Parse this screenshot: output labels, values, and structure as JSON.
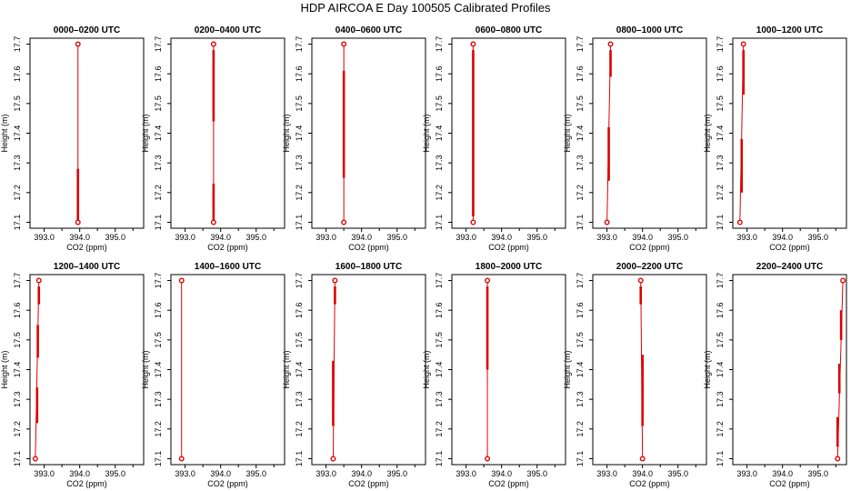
{
  "title": "HDP AIRCOA E  Day 100505  Calibrated Profiles",
  "xlabel": "CO2 (ppm)",
  "ylabel": "Height (m)",
  "x_ticks": [
    "393.0",
    "394.0",
    "395.0"
  ],
  "y_ticks": [
    "17.1",
    "17.2",
    "17.3",
    "17.4",
    "17.5",
    "17.6",
    "17.7"
  ],
  "colors": {
    "profile": "#dd0000",
    "frame": "#000000"
  },
  "chart_data": [
    {
      "type": "line",
      "title": "0000–0200 UTC",
      "xlim": [
        392.6,
        395.8
      ],
      "ylim": [
        17.08,
        17.72
      ],
      "points": [
        [
          393.95,
          17.1
        ],
        [
          393.95,
          17.7
        ]
      ],
      "segments": [
        [
          393.95,
          17.1,
          393.95,
          17.28
        ]
      ]
    },
    {
      "type": "line",
      "title": "0200–0400 UTC",
      "xlim": [
        392.6,
        395.8
      ],
      "ylim": [
        17.08,
        17.72
      ],
      "points": [
        [
          393.8,
          17.1
        ],
        [
          393.8,
          17.7
        ]
      ],
      "segments": [
        [
          393.8,
          17.1,
          393.8,
          17.23
        ],
        [
          393.8,
          17.44,
          393.8,
          17.68
        ]
      ]
    },
    {
      "type": "line",
      "title": "0400–0600 UTC",
      "xlim": [
        392.6,
        395.8
      ],
      "ylim": [
        17.08,
        17.72
      ],
      "points": [
        [
          393.5,
          17.1
        ],
        [
          393.5,
          17.7
        ]
      ],
      "segments": [
        [
          393.5,
          17.25,
          393.5,
          17.61
        ]
      ]
    },
    {
      "type": "line",
      "title": "0600–0800 UTC",
      "xlim": [
        392.6,
        395.8
      ],
      "ylim": [
        17.08,
        17.72
      ],
      "points": [
        [
          393.2,
          17.1
        ],
        [
          393.2,
          17.7
        ]
      ],
      "segments": [
        [
          393.2,
          17.12,
          393.2,
          17.68
        ]
      ]
    },
    {
      "type": "line",
      "title": "0800–1000 UTC",
      "xlim": [
        392.6,
        395.8
      ],
      "ylim": [
        17.08,
        17.72
      ],
      "points": [
        [
          393.0,
          17.1
        ],
        [
          393.1,
          17.7
        ]
      ],
      "segments": [
        [
          393.05,
          17.24,
          393.05,
          17.42
        ],
        [
          393.1,
          17.59,
          393.1,
          17.68
        ]
      ]
    },
    {
      "type": "line",
      "title": "1000–1200 UTC",
      "xlim": [
        392.6,
        395.8
      ],
      "ylim": [
        17.08,
        17.72
      ],
      "points": [
        [
          392.8,
          17.1
        ],
        [
          392.9,
          17.7
        ]
      ],
      "segments": [
        [
          392.85,
          17.2,
          392.85,
          17.38
        ],
        [
          392.9,
          17.53,
          392.9,
          17.68
        ]
      ]
    },
    {
      "type": "line",
      "title": "1200–1400 UTC",
      "xlim": [
        392.6,
        395.8
      ],
      "ylim": [
        17.08,
        17.72
      ],
      "points": [
        [
          392.75,
          17.1
        ],
        [
          392.85,
          17.7
        ]
      ],
      "segments": [
        [
          392.8,
          17.22,
          392.8,
          17.34
        ],
        [
          392.82,
          17.44,
          392.82,
          17.55
        ],
        [
          392.85,
          17.62,
          392.85,
          17.68
        ]
      ]
    },
    {
      "type": "line",
      "title": "1400–1600 UTC",
      "xlim": [
        392.6,
        395.8
      ],
      "ylim": [
        17.08,
        17.72
      ],
      "points": [
        [
          392.9,
          17.1
        ],
        [
          392.9,
          17.7
        ]
      ],
      "segments": []
    },
    {
      "type": "line",
      "title": "1600–1800 UTC",
      "xlim": [
        392.6,
        395.8
      ],
      "ylim": [
        17.08,
        17.72
      ],
      "points": [
        [
          393.2,
          17.1
        ],
        [
          393.25,
          17.7
        ]
      ],
      "segments": [
        [
          393.2,
          17.21,
          393.2,
          17.43
        ],
        [
          393.25,
          17.62,
          393.25,
          17.68
        ]
      ]
    },
    {
      "type": "line",
      "title": "1800–2000 UTC",
      "xlim": [
        392.6,
        395.8
      ],
      "ylim": [
        17.08,
        17.72
      ],
      "points": [
        [
          393.6,
          17.1
        ],
        [
          393.6,
          17.7
        ]
      ],
      "segments": [
        [
          393.6,
          17.4,
          393.6,
          17.68
        ]
      ]
    },
    {
      "type": "line",
      "title": "2000–2200 UTC",
      "xlim": [
        392.6,
        395.8
      ],
      "ylim": [
        17.08,
        17.72
      ],
      "points": [
        [
          394.0,
          17.1
        ],
        [
          393.95,
          17.7
        ]
      ],
      "segments": [
        [
          394.0,
          17.21,
          394.0,
          17.45
        ],
        [
          393.95,
          17.62,
          393.95,
          17.68
        ]
      ]
    },
    {
      "type": "line",
      "title": "2200–2400 UTC",
      "xlim": [
        392.6,
        395.8
      ],
      "ylim": [
        17.08,
        17.72
      ],
      "points": [
        [
          395.55,
          17.1
        ],
        [
          395.7,
          17.7
        ]
      ],
      "segments": [
        [
          395.55,
          17.14,
          395.55,
          17.24
        ],
        [
          395.6,
          17.32,
          395.6,
          17.42
        ],
        [
          395.65,
          17.5,
          395.65,
          17.6
        ]
      ]
    }
  ]
}
